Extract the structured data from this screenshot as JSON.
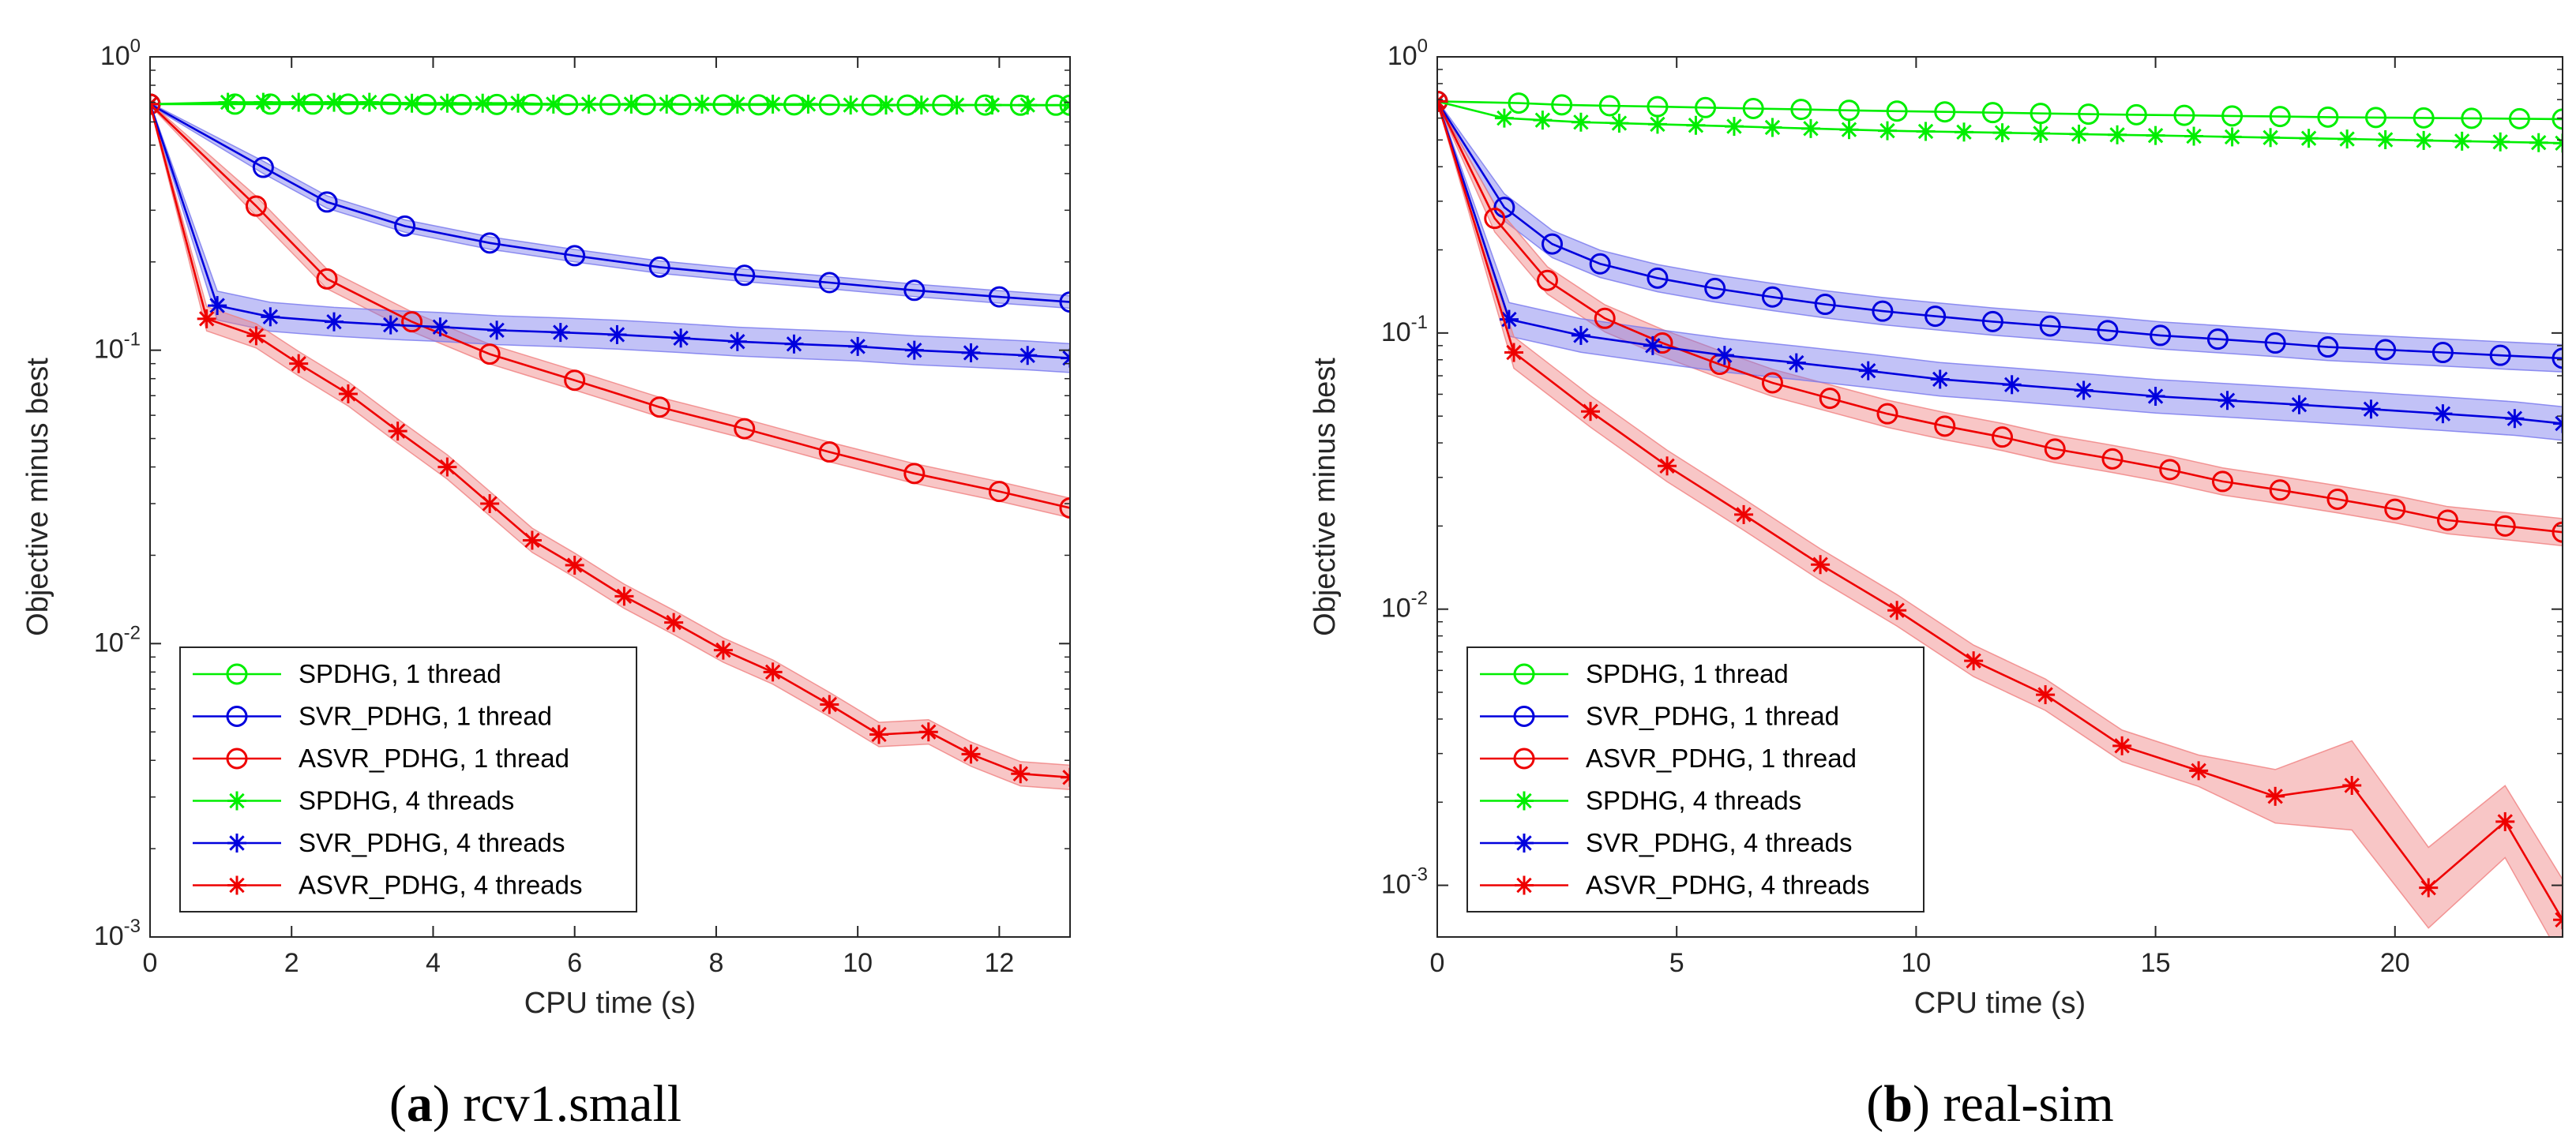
{
  "chart_data": [
    {
      "id": "a",
      "type": "line",
      "yscale": "log",
      "caption_letter": "a",
      "caption_text": "rcv1.small",
      "xlabel": "CPU time (s)",
      "ylabel": "Objective minus best",
      "xlim": [
        0,
        13
      ],
      "ylim": [
        0.001,
        1
      ],
      "xticks": [
        0,
        2,
        4,
        6,
        8,
        10,
        12
      ],
      "xtick_labels": [
        "0",
        "2",
        "4",
        "6",
        "8",
        "10",
        "12"
      ],
      "yticks": [
        1,
        0.1,
        0.01,
        0.001
      ],
      "ytick_base": "10",
      "ytick_exps": [
        "0",
        "-1",
        "-2",
        "-3"
      ],
      "legend_position": "bottom-left",
      "series": [
        {
          "name": "SPDHG, 1 thread",
          "color": "#00ee00",
          "marker": "circle",
          "band": false,
          "x": [
            0,
            1.2,
            1.7,
            2.3,
            2.8,
            3.4,
            3.9,
            4.4,
            4.9,
            5.4,
            5.9,
            6.5,
            7.0,
            7.5,
            8.1,
            8.6,
            9.1,
            9.6,
            10.2,
            10.7,
            11.2,
            11.8,
            12.3,
            12.8,
            13.0
          ],
          "values": [
            0.69,
            0.69,
            0.69,
            0.69,
            0.69,
            0.69,
            0.688,
            0.688,
            0.688,
            0.688,
            0.687,
            0.687,
            0.687,
            0.687,
            0.686,
            0.686,
            0.686,
            0.686,
            0.685,
            0.685,
            0.685,
            0.685,
            0.684,
            0.684,
            0.684
          ]
        },
        {
          "name": "SVR_PDHG, 1 thread",
          "color": "#0000dd",
          "marker": "circle",
          "band": true,
          "band_color": "#7777ee",
          "x": [
            0,
            1.6,
            2.5,
            3.6,
            4.8,
            6.0,
            7.2,
            8.4,
            9.6,
            10.8,
            12.0,
            13.0
          ],
          "values": [
            0.69,
            0.42,
            0.32,
            0.265,
            0.232,
            0.21,
            0.192,
            0.18,
            0.17,
            0.16,
            0.152,
            0.146
          ],
          "band_frac": 0.05
        },
        {
          "name": "ASVR_PDHG, 1 thread",
          "color": "#ee0000",
          "marker": "circle",
          "band": true,
          "band_color": "#f08080",
          "x": [
            0,
            1.5,
            2.5,
            3.7,
            4.8,
            6.0,
            7.2,
            8.4,
            9.6,
            10.8,
            12.0,
            13.0
          ],
          "values": [
            0.69,
            0.31,
            0.175,
            0.125,
            0.097,
            0.079,
            0.064,
            0.054,
            0.045,
            0.038,
            0.033,
            0.029
          ],
          "band_frac": 0.08
        },
        {
          "name": "SPDHG, 4 threads",
          "color": "#00ee00",
          "marker": "star",
          "band": false,
          "x": [
            0,
            1.1,
            1.6,
            2.1,
            2.6,
            3.1,
            3.7,
            4.2,
            4.7,
            5.2,
            5.7,
            6.2,
            6.8,
            7.3,
            7.8,
            8.3,
            8.8,
            9.3,
            9.9,
            10.4,
            10.9,
            11.4,
            11.9,
            12.4,
            13.0
          ],
          "values": [
            0.69,
            0.7,
            0.7,
            0.7,
            0.7,
            0.7,
            0.695,
            0.695,
            0.695,
            0.695,
            0.69,
            0.69,
            0.69,
            0.69,
            0.69,
            0.69,
            0.69,
            0.69,
            0.685,
            0.685,
            0.685,
            0.685,
            0.685,
            0.685,
            0.685
          ]
        },
        {
          "name": "SVR_PDHG, 4 threads",
          "color": "#0000dd",
          "marker": "star",
          "band": true,
          "band_color": "#7777ee",
          "x": [
            0,
            0.95,
            1.7,
            2.6,
            3.4,
            4.1,
            4.9,
            5.8,
            6.6,
            7.5,
            8.3,
            9.1,
            10.0,
            10.8,
            11.6,
            12.4,
            13.0
          ],
          "values": [
            0.69,
            0.142,
            0.13,
            0.125,
            0.122,
            0.12,
            0.117,
            0.115,
            0.113,
            0.11,
            0.107,
            0.105,
            0.103,
            0.1,
            0.098,
            0.096,
            0.094
          ],
          "band_frac": 0.12
        },
        {
          "name": "ASVR_PDHG, 4 threads",
          "color": "#ee0000",
          "marker": "star",
          "band": true,
          "band_color": "#f08080",
          "x": [
            0,
            0.8,
            1.5,
            2.1,
            2.8,
            3.5,
            4.2,
            4.8,
            5.4,
            6.0,
            6.7,
            7.4,
            8.1,
            8.8,
            9.6,
            10.3,
            11.0,
            11.6,
            12.3,
            13.0
          ],
          "values": [
            0.69,
            0.128,
            0.112,
            0.09,
            0.071,
            0.053,
            0.04,
            0.03,
            0.0225,
            0.0185,
            0.0145,
            0.0118,
            0.0095,
            0.008,
            0.0062,
            0.0049,
            0.005,
            0.0042,
            0.0036,
            0.0035
          ],
          "band_frac": 0.1
        }
      ]
    },
    {
      "id": "b",
      "type": "line",
      "yscale": "log",
      "caption_letter": "b",
      "caption_text": "real-sim",
      "xlabel": "CPU time (s)",
      "ylabel": "Objective minus best",
      "xlim": [
        0,
        23.5
      ],
      "ylim": [
        0.00065,
        1
      ],
      "xticks": [
        0,
        5,
        10,
        15,
        20
      ],
      "xtick_labels": [
        "0",
        "5",
        "10",
        "15",
        "20"
      ],
      "yticks": [
        1,
        0.1,
        0.01,
        0.001
      ],
      "ytick_base": "10",
      "ytick_exps": [
        "0",
        "-1",
        "-2",
        "-3"
      ],
      "legend_position": "bottom-left",
      "series": [
        {
          "name": "SPDHG, 1 thread",
          "color": "#00ee00",
          "marker": "circle",
          "band": false,
          "x": [
            0,
            1.7,
            2.6,
            3.6,
            4.6,
            5.6,
            6.6,
            7.6,
            8.6,
            9.6,
            10.6,
            11.6,
            12.6,
            13.6,
            14.6,
            15.6,
            16.6,
            17.6,
            18.6,
            19.6,
            20.6,
            21.6,
            22.6,
            23.5
          ],
          "values": [
            0.69,
            0.68,
            0.67,
            0.665,
            0.66,
            0.655,
            0.65,
            0.645,
            0.64,
            0.636,
            0.632,
            0.628,
            0.624,
            0.62,
            0.617,
            0.614,
            0.611,
            0.608,
            0.605,
            0.603,
            0.601,
            0.599,
            0.597,
            0.595
          ]
        },
        {
          "name": "SVR_PDHG, 1 thread",
          "color": "#0000dd",
          "marker": "circle",
          "band": true,
          "band_color": "#7777ee",
          "x": [
            0,
            1.4,
            2.4,
            3.4,
            4.6,
            5.8,
            7.0,
            8.1,
            9.3,
            10.4,
            11.6,
            12.8,
            14.0,
            15.1,
            16.3,
            17.5,
            18.6,
            19.8,
            21.0,
            22.2,
            23.5
          ],
          "values": [
            0.69,
            0.285,
            0.21,
            0.178,
            0.158,
            0.145,
            0.135,
            0.127,
            0.12,
            0.115,
            0.11,
            0.106,
            0.102,
            0.098,
            0.095,
            0.092,
            0.089,
            0.087,
            0.085,
            0.083,
            0.081
          ],
          "band_frac": 0.12
        },
        {
          "name": "ASVR_PDHG, 1 thread",
          "color": "#ee0000",
          "marker": "circle",
          "band": true,
          "band_color": "#f08080",
          "x": [
            0,
            1.2,
            2.3,
            3.5,
            4.7,
            5.9,
            7.0,
            8.2,
            9.4,
            10.6,
            11.8,
            12.9,
            14.1,
            15.3,
            16.4,
            17.6,
            18.8,
            20.0,
            21.1,
            22.3,
            23.5
          ],
          "values": [
            0.69,
            0.26,
            0.155,
            0.113,
            0.092,
            0.077,
            0.066,
            0.058,
            0.051,
            0.046,
            0.042,
            0.038,
            0.035,
            0.032,
            0.029,
            0.027,
            0.025,
            0.023,
            0.021,
            0.02,
            0.019
          ],
          "band_frac": 0.12
        },
        {
          "name": "SPDHG, 4 threads",
          "color": "#00ee00",
          "marker": "star",
          "band": false,
          "x": [
            0,
            1.4,
            2.2,
            3.0,
            3.8,
            4.6,
            5.4,
            6.2,
            7.0,
            7.8,
            8.6,
            9.4,
            10.2,
            11.0,
            11.8,
            12.6,
            13.4,
            14.2,
            15.0,
            15.8,
            16.6,
            17.4,
            18.2,
            19.0,
            19.8,
            20.6,
            21.4,
            22.2,
            23.0,
            23.5
          ],
          "values": [
            0.69,
            0.6,
            0.59,
            0.58,
            0.575,
            0.57,
            0.565,
            0.56,
            0.555,
            0.55,
            0.545,
            0.54,
            0.537,
            0.534,
            0.531,
            0.528,
            0.525,
            0.522,
            0.519,
            0.516,
            0.513,
            0.51,
            0.507,
            0.504,
            0.501,
            0.498,
            0.495,
            0.492,
            0.489,
            0.487
          ]
        },
        {
          "name": "SVR_PDHG, 4 threads",
          "color": "#0000dd",
          "marker": "star",
          "band": true,
          "band_color": "#7777ee",
          "x": [
            0,
            1.5,
            3.0,
            4.5,
            6.0,
            7.5,
            9.0,
            10.5,
            12.0,
            13.5,
            15.0,
            16.5,
            18.0,
            19.5,
            21.0,
            22.5,
            23.5
          ],
          "values": [
            0.69,
            0.112,
            0.098,
            0.09,
            0.083,
            0.078,
            0.073,
            0.068,
            0.065,
            0.062,
            0.059,
            0.057,
            0.055,
            0.053,
            0.051,
            0.049,
            0.047
          ],
          "band_frac": 0.15
        },
        {
          "name": "ASVR_PDHG, 4 threads",
          "color": "#ee0000",
          "marker": "star",
          "band": true,
          "band_color": "#f08080",
          "x": [
            0,
            1.6,
            3.2,
            4.8,
            6.4,
            8.0,
            9.6,
            11.2,
            12.7,
            14.3,
            15.9,
            17.5,
            19.1,
            20.7,
            22.3,
            23.5
          ],
          "values": [
            0.69,
            0.085,
            0.052,
            0.033,
            0.022,
            0.0145,
            0.0099,
            0.0065,
            0.0049,
            0.0032,
            0.0026,
            0.0021,
            0.0023,
            0.00098,
            0.0017,
            0.00075
          ],
          "band_frac": 0.14,
          "band_frac_overrides": {
            "13": 0.4,
            "14": 0.35,
            "15": 0.4,
            "12": 0.45,
            "11": 0.25
          }
        }
      ]
    }
  ]
}
